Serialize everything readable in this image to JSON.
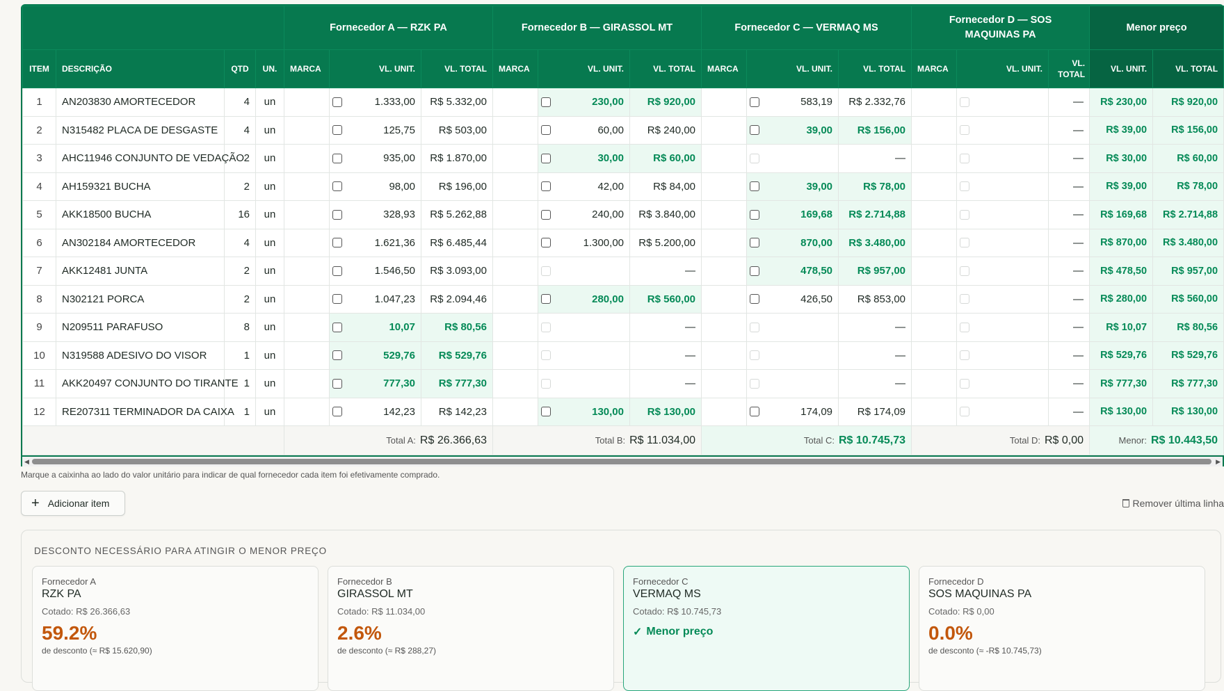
{
  "suppliers": {
    "a": {
      "group_header": "Fornecedor A — RZK PA",
      "label": "Fornecedor A",
      "name": "RZK PA",
      "total_label": "Total A:",
      "total": "R$ 26.366,63",
      "quoted": "Cotado: R$ 26.366,63",
      "discount_pct": "59.2%",
      "discount_text": "de desconto (≈ R$ 15.620,90)"
    },
    "b": {
      "group_header": "Fornecedor B — GIRASSOL MT",
      "label": "Fornecedor B",
      "name": "GIRASSOL MT",
      "total_label": "Total B:",
      "total": "R$ 11.034,00",
      "quoted": "Cotado: R$ 11.034,00",
      "discount_pct": "2.6%",
      "discount_text": "de desconto (≈ R$ 288,27)"
    },
    "c": {
      "group_header": "Fornecedor C — VERMAQ MS",
      "label": "Fornecedor C",
      "name": "VERMAQ MS",
      "total_label": "Total C:",
      "total": "R$ 10.745,73",
      "quoted": "Cotado: R$ 10.745,73",
      "best_label": "Menor preço"
    },
    "d": {
      "group_header": "Fornecedor D — SOS MAQUINAS PA",
      "label": "Fornecedor D",
      "name": "SOS MAQUINAS PA",
      "total_label": "Total D:",
      "total": "R$ 0,00",
      "quoted": "Cotado: R$ 0,00",
      "discount_pct": "0.0%",
      "discount_text": "de desconto (≈ -R$ 10.745,73)"
    }
  },
  "min_header": "Menor preço",
  "min_total_label": "Menor:",
  "min_total": "R$ 10.443,50",
  "columns": {
    "item": "ITEM",
    "descricao": "DESCRIÇÃO",
    "qtd": "QTD",
    "un": "UN.",
    "marca": "MARCA",
    "vl_unit": "VL. UNIT.",
    "vl_total": "VL. TOTAL",
    "vl_total_split": "VL.\nTOTAL"
  },
  "rows": [
    {
      "n": "1",
      "desc": "AN203830 AMORTECEDOR",
      "qtd": "4",
      "un": "un",
      "a": [
        "1.333,00",
        "R$ 5.332,00"
      ],
      "b": [
        "230,00",
        "R$ 920,00"
      ],
      "c": [
        "583,19",
        "R$ 2.332,76"
      ],
      "m": [
        "R$ 230,00",
        "R$ 920,00"
      ],
      "best": "b",
      "on": "abc"
    },
    {
      "n": "2",
      "desc": "N315482 PLACA DE DESGASTE",
      "qtd": "4",
      "un": "un",
      "a": [
        "125,75",
        "R$ 503,00"
      ],
      "b": [
        "60,00",
        "R$ 240,00"
      ],
      "c": [
        "39,00",
        "R$ 156,00"
      ],
      "m": [
        "R$ 39,00",
        "R$ 156,00"
      ],
      "best": "c",
      "on": "abc"
    },
    {
      "n": "3",
      "desc": "AHC11946 CONJUNTO DE VEDAÇÃO",
      "qtd": "2",
      "un": "un",
      "a": [
        "935,00",
        "R$ 1.870,00"
      ],
      "b": [
        "30,00",
        "R$ 60,00"
      ],
      "c": [
        "",
        "—"
      ],
      "m": [
        "R$ 30,00",
        "R$ 60,00"
      ],
      "best": "b",
      "on": "ab"
    },
    {
      "n": "4",
      "desc": "AH159321 BUCHA",
      "qtd": "2",
      "un": "un",
      "a": [
        "98,00",
        "R$ 196,00"
      ],
      "b": [
        "42,00",
        "R$ 84,00"
      ],
      "c": [
        "39,00",
        "R$ 78,00"
      ],
      "m": [
        "R$ 39,00",
        "R$ 78,00"
      ],
      "best": "c",
      "on": "abc"
    },
    {
      "n": "5",
      "desc": "AKK18500 BUCHA",
      "qtd": "16",
      "un": "un",
      "a": [
        "328,93",
        "R$ 5.262,88"
      ],
      "b": [
        "240,00",
        "R$ 3.840,00"
      ],
      "c": [
        "169,68",
        "R$ 2.714,88"
      ],
      "m": [
        "R$ 169,68",
        "R$ 2.714,88"
      ],
      "best": "c",
      "on": "abc"
    },
    {
      "n": "6",
      "desc": "AN302184 AMORTECEDOR",
      "qtd": "4",
      "un": "un",
      "a": [
        "1.621,36",
        "R$ 6.485,44"
      ],
      "b": [
        "1.300,00",
        "R$ 5.200,00"
      ],
      "c": [
        "870,00",
        "R$ 3.480,00"
      ],
      "m": [
        "R$ 870,00",
        "R$ 3.480,00"
      ],
      "best": "c",
      "on": "abc"
    },
    {
      "n": "7",
      "desc": "AKK12481 JUNTA",
      "qtd": "2",
      "un": "un",
      "a": [
        "1.546,50",
        "R$ 3.093,00"
      ],
      "b": [
        "",
        "—"
      ],
      "c": [
        "478,50",
        "R$ 957,00"
      ],
      "m": [
        "R$ 478,50",
        "R$ 957,00"
      ],
      "best": "c",
      "on": "ac"
    },
    {
      "n": "8",
      "desc": "N302121 PORCA",
      "qtd": "2",
      "un": "un",
      "a": [
        "1.047,23",
        "R$ 2.094,46"
      ],
      "b": [
        "280,00",
        "R$ 560,00"
      ],
      "c": [
        "426,50",
        "R$ 853,00"
      ],
      "m": [
        "R$ 280,00",
        "R$ 560,00"
      ],
      "best": "b",
      "on": "abc"
    },
    {
      "n": "9",
      "desc": "N209511 PARAFUSO",
      "qtd": "8",
      "un": "un",
      "a": [
        "10,07",
        "R$ 80,56"
      ],
      "b": [
        "",
        "—"
      ],
      "c": [
        "",
        "—"
      ],
      "m": [
        "R$ 10,07",
        "R$ 80,56"
      ],
      "best": "a",
      "on": "a"
    },
    {
      "n": "10",
      "desc": "N319588 ADESIVO DO VISOR",
      "qtd": "1",
      "un": "un",
      "a": [
        "529,76",
        "R$ 529,76"
      ],
      "b": [
        "",
        "—"
      ],
      "c": [
        "",
        "—"
      ],
      "m": [
        "R$ 529,76",
        "R$ 529,76"
      ],
      "best": "a",
      "on": "a"
    },
    {
      "n": "11",
      "desc": "AKK20497 CONJUNTO DO TIRANTE",
      "qtd": "1",
      "un": "un",
      "a": [
        "777,30",
        "R$ 777,30"
      ],
      "b": [
        "",
        "—"
      ],
      "c": [
        "",
        "—"
      ],
      "m": [
        "R$ 777,30",
        "R$ 777,30"
      ],
      "best": "a",
      "on": "a"
    },
    {
      "n": "12",
      "desc": "RE207311 TERMINADOR DA CAIXA",
      "qtd": "1",
      "un": "un",
      "a": [
        "142,23",
        "R$ 142,23"
      ],
      "b": [
        "130,00",
        "R$ 130,00"
      ],
      "c": [
        "174,09",
        "R$ 174,09"
      ],
      "m": [
        "R$ 130,00",
        "R$ 130,00"
      ],
      "best": "b",
      "on": "abc"
    }
  ],
  "d_empty_total": "—",
  "hint": "Marque a caixinha ao lado do valor unitário para indicar de qual fornecedor cada item foi efetivamente comprado.",
  "add_item": "Adicionar item",
  "remove_last": "Remover última linha",
  "discount_title": "DESCONTO NECESSÁRIO PARA ATINGIR O MENOR PREÇO",
  "colors": {
    "green": "#07794f",
    "green_dark": "#066442",
    "best_text": "#058a57",
    "best_bg": "#ebf9f2",
    "discount": "#c2570c"
  }
}
